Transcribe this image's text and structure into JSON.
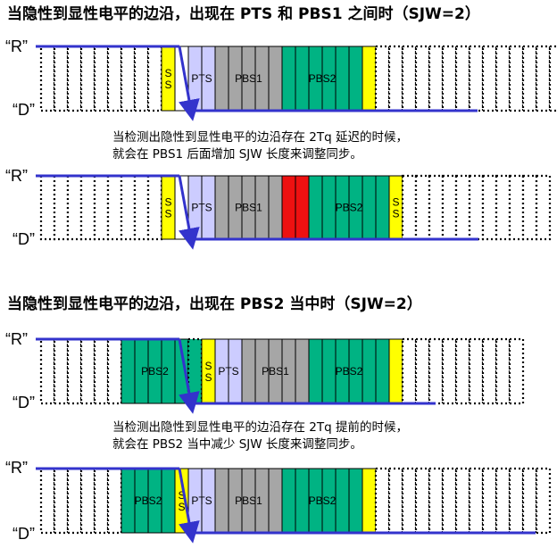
{
  "titles": [
    "当隐性到显性电平的边沿，出现在 PTS 和 PBS1 之间时（SJW=2）",
    "当隐性到显性电平的边沿，出现在 PBS2 当中时（SJW=2）"
  ],
  "level_labels": {
    "recessive": "“R”",
    "dominant": "“D”"
  },
  "captions": [
    [
      "当检测出隐性到显性电平的边沿存在 2Tq 延迟的时候，",
      "就会在 PBS1 后面增加 SJW 长度来调整同步。"
    ],
    [
      "当检测出隐性到显性电平的边沿存在 2Tq 提前的时候，",
      "就会在 PBS2 当中减少 SJW 长度来调整同步。"
    ]
  ],
  "segment_names": {
    "ss": "S S",
    "pts": "PTS",
    "pbs1": "PBS1",
    "pbs2": "PBS2"
  },
  "colors": {
    "ss": "#ffff00",
    "pts": "#ccccff",
    "pbs1": "#a6a6a6",
    "pbs2": "#00b383",
    "sjw": "#ee1111",
    "signal": "#3333cc",
    "empty": "#ffffff"
  },
  "diagrams": [
    {
      "level_labels_x": [
        20,
        28
      ],
      "row_left_x": 46,
      "cells": [
        "e",
        "e",
        "e",
        "e",
        "e",
        "e",
        "e",
        "e",
        "e",
        "ss",
        "e",
        "pts",
        "pts",
        "pbs1",
        "pbs1",
        "pbs1",
        "pbs1",
        "pbs1",
        "pbs2",
        "pbs2",
        "pbs2",
        "pbs2",
        "pbs2",
        "pbs2",
        "ss",
        "e",
        "e",
        "e",
        "e",
        "e",
        "e",
        "e",
        "e",
        "e",
        "e",
        "e",
        "e",
        "e",
        "e"
      ],
      "labels": [
        {
          "key": "ss",
          "cells": [
            9,
            9
          ]
        },
        {
          "key": "pts",
          "cells": [
            11,
            12
          ]
        },
        {
          "key": "pbs1",
          "cells": [
            13,
            17
          ]
        },
        {
          "key": "pbs2",
          "cells": [
            18,
            23
          ]
        }
      ],
      "dotted_ranges": [
        [
          0,
          8
        ],
        [
          25,
          38
        ]
      ]
    },
    {
      "level_labels_x": [
        20,
        28
      ],
      "row_left_x": 46,
      "cells": [
        "e",
        "e",
        "e",
        "e",
        "e",
        "e",
        "e",
        "e",
        "e",
        "ss",
        "e",
        "pts",
        "pts",
        "pbs1",
        "pbs1",
        "pbs1",
        "pbs1",
        "pbs1",
        "sjw",
        "sjw",
        "pbs2",
        "pbs2",
        "pbs2",
        "pbs2",
        "pbs2",
        "pbs2",
        "ss",
        "e",
        "e",
        "e",
        "e",
        "e",
        "e",
        "e",
        "e",
        "e",
        "e",
        "e"
      ],
      "labels": [
        {
          "key": "ss",
          "cells": [
            9,
            9
          ]
        },
        {
          "key": "pts",
          "cells": [
            11,
            12
          ]
        },
        {
          "key": "pbs1",
          "cells": [
            13,
            17
          ]
        },
        {
          "key": "pbs2",
          "cells": [
            20,
            25
          ]
        },
        {
          "key": "ss",
          "cells": [
            26,
            26
          ]
        }
      ],
      "dotted_ranges": [
        [
          0,
          8
        ],
        [
          27,
          37
        ]
      ]
    },
    {
      "level_labels_x": [
        20,
        28
      ],
      "row_left_x": 46,
      "cells": [
        "e",
        "e",
        "e",
        "e",
        "e",
        "e",
        "pbs2",
        "pbs2",
        "pbs2",
        "pbs2",
        "pbs2",
        "pbs2",
        "ss",
        "pts",
        "pts",
        "pbs1",
        "pbs1",
        "pbs1",
        "pbs1",
        "pbs1",
        "pbs2",
        "pbs2",
        "pbs2",
        "pbs2",
        "pbs2",
        "pbs2",
        "ss",
        "e",
        "e",
        "e",
        "e",
        "e",
        "e",
        "e",
        "e",
        "e"
      ],
      "labels": [
        {
          "key": "pbs2",
          "cells": [
            6,
            10
          ]
        },
        {
          "key": "ss",
          "cells": [
            12,
            12
          ]
        },
        {
          "key": "pts",
          "cells": [
            13,
            14
          ]
        },
        {
          "key": "pbs1",
          "cells": [
            15,
            19
          ]
        },
        {
          "key": "pbs2",
          "cells": [
            20,
            25
          ]
        }
      ],
      "dotted_ranges": [
        [
          0,
          5
        ],
        [
          11,
          11
        ],
        [
          27,
          35
        ]
      ]
    },
    {
      "level_labels_x": [
        20,
        28
      ],
      "row_left_x": 46,
      "cells": [
        "e",
        "e",
        "e",
        "e",
        "e",
        "e",
        "pbs2",
        "pbs2",
        "pbs2",
        "pbs2",
        "ss",
        "pts",
        "pts",
        "pbs1",
        "pbs1",
        "pbs1",
        "pbs1",
        "pbs1",
        "pbs2",
        "pbs2",
        "pbs2",
        "pbs2",
        "pbs2",
        "pbs2",
        "ss",
        "e",
        "e",
        "e",
        "e",
        "e",
        "e",
        "e",
        "e",
        "e",
        "e",
        "e",
        "e",
        "e"
      ],
      "labels": [
        {
          "key": "pbs2",
          "cells": [
            6,
            9
          ]
        },
        {
          "key": "ss",
          "cells": [
            10,
            10
          ]
        },
        {
          "key": "pts",
          "cells": [
            11,
            12
          ]
        },
        {
          "key": "pbs1",
          "cells": [
            13,
            17
          ]
        },
        {
          "key": "pbs2",
          "cells": [
            18,
            23
          ]
        }
      ],
      "dotted_ranges": [
        [
          0,
          5
        ],
        [
          25,
          37
        ]
      ]
    }
  ]
}
